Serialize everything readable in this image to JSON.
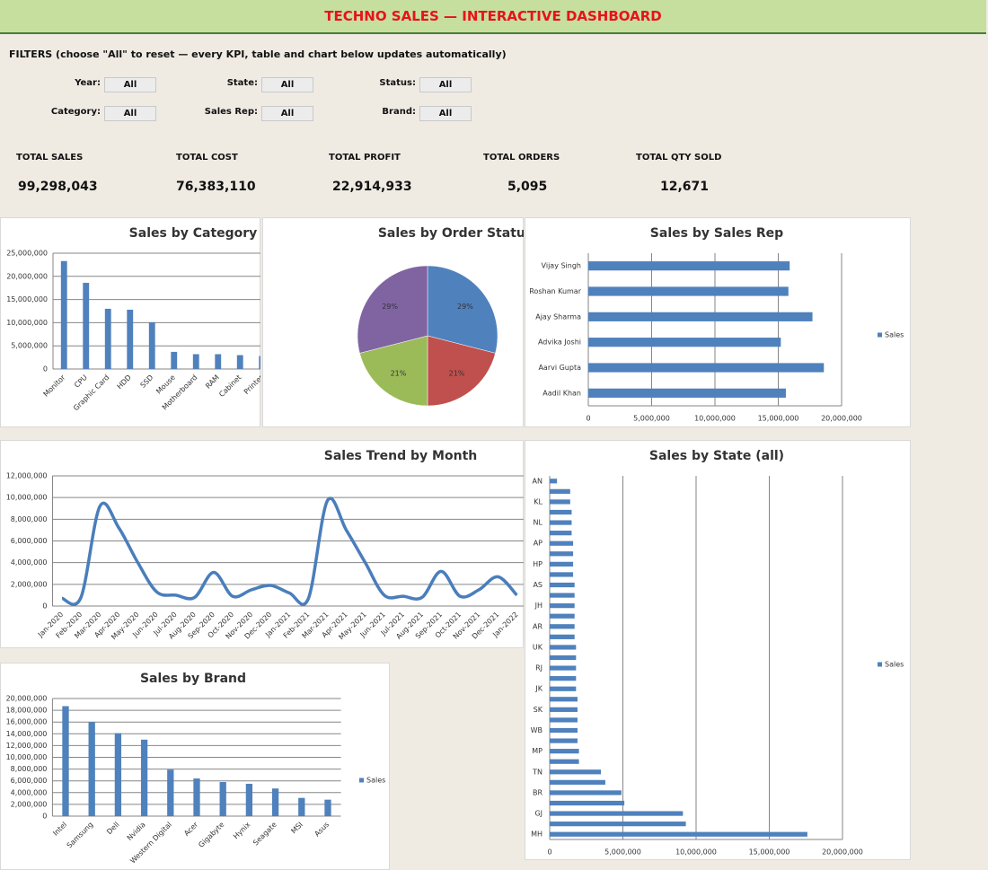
{
  "header": {
    "title": "TECHNO SALES — INTERACTIVE DASHBOARD"
  },
  "filters": {
    "note": "FILTERS  (choose \"All\" to reset — every KPI, table and chart below updates automatically)",
    "items": [
      {
        "label": "Year:",
        "value": "All"
      },
      {
        "label": "State:",
        "value": "All"
      },
      {
        "label": "Status:",
        "value": "All"
      },
      {
        "label": "Category:",
        "value": "All"
      },
      {
        "label": "Sales Rep:",
        "value": "All"
      },
      {
        "label": "Brand:",
        "value": "All"
      }
    ]
  },
  "kpis": [
    {
      "label": "TOTAL SALES",
      "value": "99,298,043"
    },
    {
      "label": "TOTAL COST",
      "value": "76,383,110"
    },
    {
      "label": "TOTAL PROFIT",
      "value": "22,914,933"
    },
    {
      "label": "TOTAL ORDERS",
      "value": "5,095"
    },
    {
      "label": "TOTAL QTY SOLD",
      "value": "12,671"
    }
  ],
  "chart_data": [
    {
      "type": "bar",
      "title": "Sales by Category",
      "categories": [
        "Monitor",
        "CPU",
        "Graphic Card",
        "HDD",
        "SSD",
        "Mouse",
        "Motherboard",
        "RAM",
        "Cabinet",
        "Printer"
      ],
      "values": [
        23300000,
        18600000,
        13000000,
        12800000,
        10100000,
        3700000,
        3200000,
        3200000,
        3000000,
        2800000
      ],
      "color": "#4f81bd",
      "ylim": [
        0,
        25000000
      ],
      "yticks": [
        0,
        {
          "value": 5000000,
          "label": "5,000,000"
        },
        {
          "value": 10000000,
          "label": "10,000,000"
        },
        {
          "value": 15000000,
          "label": "15,000,000"
        },
        {
          "value": 20000000,
          "label": "20,000,000"
        },
        {
          "value": 25000000,
          "label": "25,000,000"
        }
      ],
      "grid": true
    },
    {
      "type": "pie",
      "title": "Sales by Order Status",
      "values": [
        29,
        21,
        21,
        29
      ],
      "value_labels": [
        "29%",
        "21%",
        "21%",
        "29%"
      ],
      "colors": [
        "#4f81bd",
        "#c0504d",
        "#9bbb59",
        "#8064a2"
      ]
    },
    {
      "type": "barh",
      "title": "Sales by Sales Rep",
      "categories": [
        "Vijay Singh",
        "Roshan Kumar",
        "Ajay Sharma",
        "Advika Joshi",
        "Aarvi Gupta",
        "Aadil Khan"
      ],
      "series": [
        {
          "name": "Sales",
          "color": "#4f81bd",
          "values": [
            15900000,
            15800000,
            17700000,
            15200000,
            18600000,
            15600000
          ]
        }
      ],
      "xlim": [
        0,
        20000000
      ],
      "xticks": [
        0,
        {
          "value": 5000000,
          "label": "5,000,000"
        },
        {
          "value": 10000000,
          "label": "10,000,000"
        },
        {
          "value": 15000000,
          "label": "15,000,000"
        },
        {
          "value": 20000000,
          "label": "20,000,000"
        }
      ],
      "grid": true,
      "legend": "right"
    },
    {
      "type": "line",
      "title": "Sales Trend by Month",
      "categories": [
        "Jan-2020",
        "Feb-2020",
        "Mar-2020",
        "Apr-2020",
        "May-2020",
        "Jun-2020",
        "Jul-2020",
        "Aug-2020",
        "Sep-2020",
        "Oct-2020",
        "Nov-2020",
        "Dec-2020",
        "Jan-2021",
        "Feb-2021",
        "Mar-2021",
        "Apr-2021",
        "May-2021",
        "Jun-2021",
        "Jul-2021",
        "Aug-2021",
        "Sep-2021",
        "Oct-2021",
        "Nov-2021",
        "Dec-2021",
        "Jan-2022"
      ],
      "values": [
        700000,
        800000,
        9200000,
        7200000,
        4000000,
        1300000,
        1000000,
        800000,
        3100000,
        900000,
        1500000,
        1900000,
        1200000,
        700000,
        9700000,
        7000000,
        4000000,
        1000000,
        900000,
        800000,
        3200000,
        900000,
        1500000,
        2700000,
        1000000
      ],
      "color": "#4a7ebb",
      "smooth": true,
      "ylim": [
        0,
        12000000
      ],
      "yticks": [
        0,
        {
          "value": 2000000,
          "label": "2,000,000"
        },
        {
          "value": 4000000,
          "label": "4,000,000"
        },
        {
          "value": 6000000,
          "label": "6,000,000"
        },
        {
          "value": 8000000,
          "label": "8,000,000"
        },
        {
          "value": 10000000,
          "label": "10,000,000"
        },
        {
          "value": 12000000,
          "label": "12,000,000"
        }
      ],
      "grid": true
    },
    {
      "type": "barh",
      "title": "Sales by State (all)",
      "categories": [
        "AN",
        null,
        "KL",
        null,
        "NL",
        null,
        "AP",
        null,
        "HP",
        null,
        "AS",
        null,
        "JH",
        null,
        "AR",
        null,
        "UK",
        null,
        "RJ",
        null,
        "JK",
        null,
        "SK",
        null,
        "WB",
        null,
        "MP",
        null,
        "TN",
        null,
        "BR",
        null,
        "GJ",
        null,
        "MH"
      ],
      "series": [
        {
          "name": "Sales",
          "color": "#4f81bd",
          "values": [
            500000,
            1400000,
            1400000,
            1500000,
            1500000,
            1500000,
            1600000,
            1600000,
            1600000,
            1600000,
            1700000,
            1700000,
            1700000,
            1700000,
            1700000,
            1700000,
            1800000,
            1800000,
            1800000,
            1800000,
            1800000,
            1900000,
            1900000,
            1900000,
            1900000,
            1900000,
            2000000,
            2000000,
            3500000,
            3800000,
            4900000,
            5100000,
            9100000,
            9300000,
            17600000
          ]
        }
      ],
      "xlim": [
        0,
        20000000
      ],
      "xticks": [
        0,
        {
          "value": 5000000,
          "label": "5,000,000"
        },
        {
          "value": 10000000,
          "label": "10,000,000"
        },
        {
          "value": 15000000,
          "label": "15,000,000"
        },
        {
          "value": 20000000,
          "label": "20,000,000"
        }
      ],
      "grid": true,
      "legend": "right"
    },
    {
      "type": "bar",
      "title": "Sales by Brand",
      "categories": [
        "Intel",
        "Samsung",
        "Dell",
        "Nvidia",
        "Western Digital",
        "Acer",
        "Gigabyte",
        "Hynix",
        "Seagate",
        "MSI",
        "Asus"
      ],
      "series": [
        {
          "name": "Sales",
          "color": "#4f81bd",
          "values": [
            18700000,
            16000000,
            14100000,
            13000000,
            7900000,
            6400000,
            5800000,
            5500000,
            4700000,
            3100000,
            2800000
          ]
        }
      ],
      "ylim": [
        0,
        20000000
      ],
      "yticks": [
        0,
        {
          "value": 2000000,
          "label": "2,000,000"
        },
        {
          "value": 4000000,
          "label": "4,000,000"
        },
        {
          "value": 6000000,
          "label": "6,000,000"
        },
        {
          "value": 8000000,
          "label": "8,000,000"
        },
        {
          "value": 10000000,
          "label": "10,000,000"
        },
        {
          "value": 12000000,
          "label": "12,000,000"
        },
        {
          "value": 14000000,
          "label": "14,000,000"
        },
        {
          "value": 16000000,
          "label": "16,000,000"
        },
        {
          "value": 18000000,
          "label": "18,000,000"
        },
        {
          "value": 20000000,
          "label": "20,000,000"
        }
      ],
      "grid": true,
      "legend": "right"
    }
  ]
}
